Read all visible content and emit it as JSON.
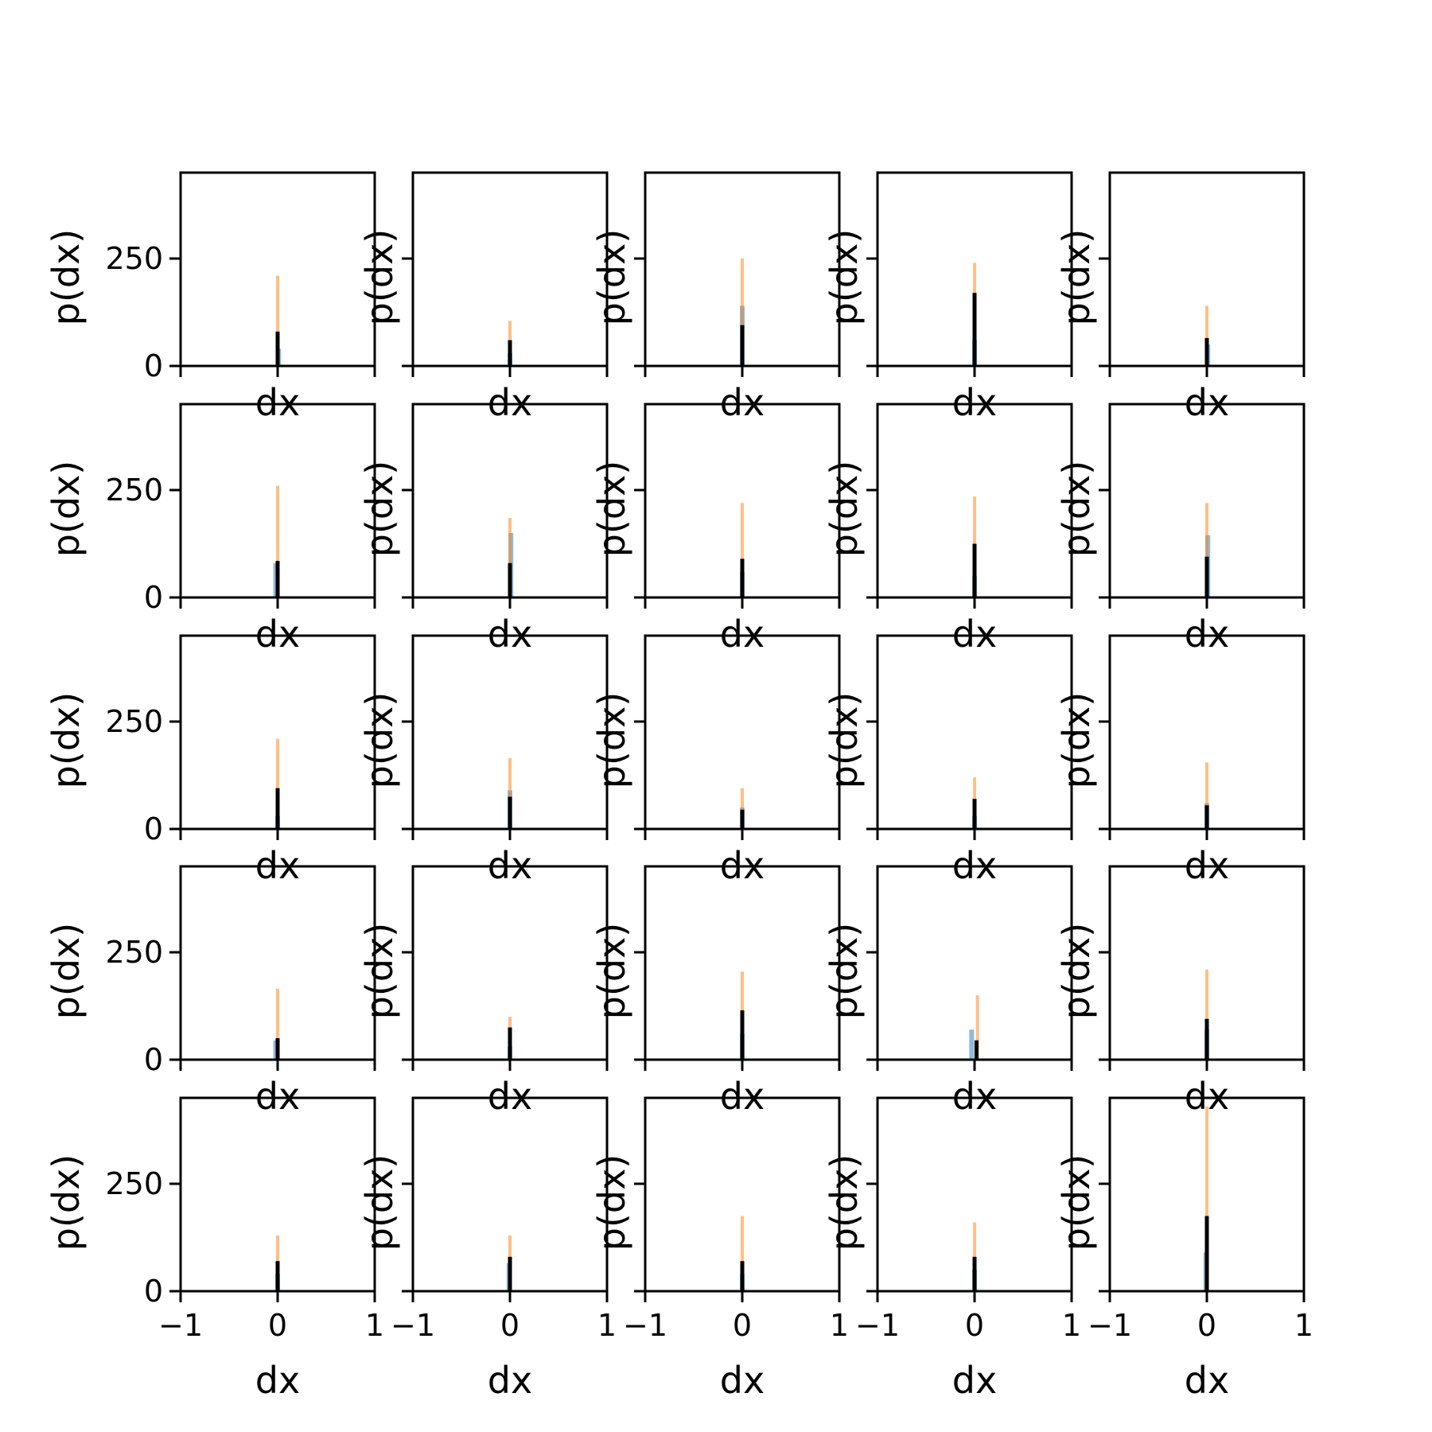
{
  "figure": {
    "rows": 5,
    "cols": 5
  },
  "colors": {
    "series_blue": "#1f77b4",
    "series_orange": "#ff7f0e",
    "series_black": "#000000",
    "axes": "#000000",
    "background": "#ffffff"
  },
  "chart_data": {
    "type": "bar",
    "layout": "small-multiples 5x5 grid of histograms",
    "xlabel": "dx",
    "ylabel": "p(dx)",
    "xlim": [
      -1,
      1
    ],
    "ylim": [
      0,
      450
    ],
    "xticks": [
      -1,
      0,
      1
    ],
    "xtick_labels": [
      "−1",
      "0",
      "1"
    ],
    "yticks": [
      0,
      250
    ],
    "ytick_labels": [
      "0",
      "250"
    ],
    "ytick_labels_shown_on": "first column only",
    "xtick_labels_shown_on": "bottom row only",
    "grid": false,
    "legend": "none",
    "panels": [
      {
        "row": 0,
        "col": 0,
        "series": [
          {
            "color": "orange",
            "x": 0.0,
            "peak": 210
          },
          {
            "color": "blue",
            "x": 0.01,
            "peak": 40
          },
          {
            "color": "black",
            "x": 0.0,
            "peak": 80
          }
        ]
      },
      {
        "row": 0,
        "col": 1,
        "series": [
          {
            "color": "orange",
            "x": 0.0,
            "peak": 105
          },
          {
            "color": "blue",
            "x": 0.0,
            "peak": 30
          },
          {
            "color": "black",
            "x": 0.0,
            "peak": 60
          }
        ]
      },
      {
        "row": 0,
        "col": 2,
        "series": [
          {
            "color": "orange",
            "x": 0.0,
            "peak": 250
          },
          {
            "color": "blue",
            "x": 0.0,
            "peak": 140
          },
          {
            "color": "black",
            "x": 0.0,
            "peak": 95
          }
        ]
      },
      {
        "row": 0,
        "col": 3,
        "series": [
          {
            "color": "orange",
            "x": 0.0,
            "peak": 240
          },
          {
            "color": "blue",
            "x": 0.0,
            "peak": 60
          },
          {
            "color": "black",
            "x": 0.0,
            "peak": 170
          }
        ]
      },
      {
        "row": 0,
        "col": 4,
        "series": [
          {
            "color": "orange",
            "x": 0.0,
            "peak": 140
          },
          {
            "color": "blue",
            "x": 0.01,
            "peak": 50
          },
          {
            "color": "black",
            "x": 0.0,
            "peak": 65
          }
        ]
      },
      {
        "row": 1,
        "col": 0,
        "series": [
          {
            "color": "orange",
            "x": 0.0,
            "peak": 260
          },
          {
            "color": "blue",
            "x": -0.02,
            "peak": 80
          },
          {
            "color": "black",
            "x": 0.0,
            "peak": 85
          }
        ]
      },
      {
        "row": 1,
        "col": 1,
        "series": [
          {
            "color": "orange",
            "x": 0.0,
            "peak": 185
          },
          {
            "color": "blue",
            "x": 0.01,
            "peak": 150
          },
          {
            "color": "black",
            "x": 0.0,
            "peak": 80
          }
        ]
      },
      {
        "row": 1,
        "col": 2,
        "series": [
          {
            "color": "orange",
            "x": 0.0,
            "peak": 220
          },
          {
            "color": "blue",
            "x": 0.0,
            "peak": 60
          },
          {
            "color": "black",
            "x": 0.0,
            "peak": 90
          }
        ]
      },
      {
        "row": 1,
        "col": 3,
        "series": [
          {
            "color": "orange",
            "x": 0.0,
            "peak": 235
          },
          {
            "color": "blue",
            "x": 0.0,
            "peak": 50
          },
          {
            "color": "black",
            "x": 0.0,
            "peak": 125
          }
        ]
      },
      {
        "row": 1,
        "col": 4,
        "series": [
          {
            "color": "orange",
            "x": 0.0,
            "peak": 220
          },
          {
            "color": "blue",
            "x": 0.01,
            "peak": 145
          },
          {
            "color": "black",
            "x": 0.0,
            "peak": 95
          }
        ]
      },
      {
        "row": 2,
        "col": 0,
        "series": [
          {
            "color": "orange",
            "x": 0.0,
            "peak": 210
          },
          {
            "color": "blue",
            "x": 0.0,
            "peak": 30
          },
          {
            "color": "black",
            "x": 0.0,
            "peak": 95
          }
        ]
      },
      {
        "row": 2,
        "col": 1,
        "series": [
          {
            "color": "orange",
            "x": 0.0,
            "peak": 165
          },
          {
            "color": "blue",
            "x": 0.0,
            "peak": 90
          },
          {
            "color": "black",
            "x": 0.0,
            "peak": 75
          }
        ]
      },
      {
        "row": 2,
        "col": 2,
        "series": [
          {
            "color": "orange",
            "x": 0.0,
            "peak": 95
          },
          {
            "color": "blue",
            "x": 0.0,
            "peak": 50
          },
          {
            "color": "black",
            "x": 0.0,
            "peak": 45
          }
        ]
      },
      {
        "row": 2,
        "col": 3,
        "series": [
          {
            "color": "orange",
            "x": 0.0,
            "peak": 120
          },
          {
            "color": "blue",
            "x": 0.0,
            "peak": 30
          },
          {
            "color": "black",
            "x": 0.0,
            "peak": 70
          }
        ]
      },
      {
        "row": 2,
        "col": 4,
        "series": [
          {
            "color": "orange",
            "x": 0.0,
            "peak": 155
          },
          {
            "color": "blue",
            "x": 0.0,
            "peak": 60
          },
          {
            "color": "black",
            "x": 0.0,
            "peak": 55
          }
        ]
      },
      {
        "row": 3,
        "col": 0,
        "series": [
          {
            "color": "orange",
            "x": 0.0,
            "peak": 165
          },
          {
            "color": "blue",
            "x": -0.02,
            "peak": 45
          },
          {
            "color": "black",
            "x": 0.0,
            "peak": 50
          }
        ]
      },
      {
        "row": 3,
        "col": 1,
        "series": [
          {
            "color": "orange",
            "x": 0.0,
            "peak": 100
          },
          {
            "color": "blue",
            "x": 0.0,
            "peak": 30
          },
          {
            "color": "black",
            "x": 0.0,
            "peak": 75
          }
        ]
      },
      {
        "row": 3,
        "col": 2,
        "series": [
          {
            "color": "orange",
            "x": 0.0,
            "peak": 205
          },
          {
            "color": "blue",
            "x": 0.0,
            "peak": 60
          },
          {
            "color": "black",
            "x": 0.0,
            "peak": 115
          }
        ]
      },
      {
        "row": 3,
        "col": 3,
        "series": [
          {
            "color": "orange",
            "x": 0.03,
            "peak": 150
          },
          {
            "color": "blue",
            "x": -0.03,
            "peak": 70
          },
          {
            "color": "black",
            "x": 0.02,
            "peak": 45
          }
        ]
      },
      {
        "row": 3,
        "col": 4,
        "series": [
          {
            "color": "orange",
            "x": 0.0,
            "peak": 210
          },
          {
            "color": "blue",
            "x": 0.0,
            "peak": 70
          },
          {
            "color": "black",
            "x": 0.0,
            "peak": 95
          }
        ]
      },
      {
        "row": 4,
        "col": 0,
        "series": [
          {
            "color": "orange",
            "x": 0.0,
            "peak": 130
          },
          {
            "color": "blue",
            "x": 0.0,
            "peak": 40
          },
          {
            "color": "black",
            "x": 0.0,
            "peak": 70
          }
        ]
      },
      {
        "row": 4,
        "col": 1,
        "series": [
          {
            "color": "orange",
            "x": 0.0,
            "peak": 130
          },
          {
            "color": "blue",
            "x": -0.01,
            "peak": 65
          },
          {
            "color": "black",
            "x": 0.0,
            "peak": 80
          }
        ]
      },
      {
        "row": 4,
        "col": 2,
        "series": [
          {
            "color": "orange",
            "x": 0.0,
            "peak": 175
          },
          {
            "color": "blue",
            "x": 0.0,
            "peak": 40
          },
          {
            "color": "black",
            "x": 0.0,
            "peak": 70
          }
        ]
      },
      {
        "row": 4,
        "col": 3,
        "series": [
          {
            "color": "orange",
            "x": 0.0,
            "peak": 160
          },
          {
            "color": "blue",
            "x": 0.0,
            "peak": 50
          },
          {
            "color": "black",
            "x": 0.0,
            "peak": 80
          }
        ]
      },
      {
        "row": 4,
        "col": 4,
        "series": [
          {
            "color": "orange",
            "x": 0.0,
            "peak": 430
          },
          {
            "color": "blue",
            "x": -0.01,
            "peak": 90
          },
          {
            "color": "black",
            "x": 0.0,
            "peak": 175
          }
        ]
      }
    ]
  }
}
